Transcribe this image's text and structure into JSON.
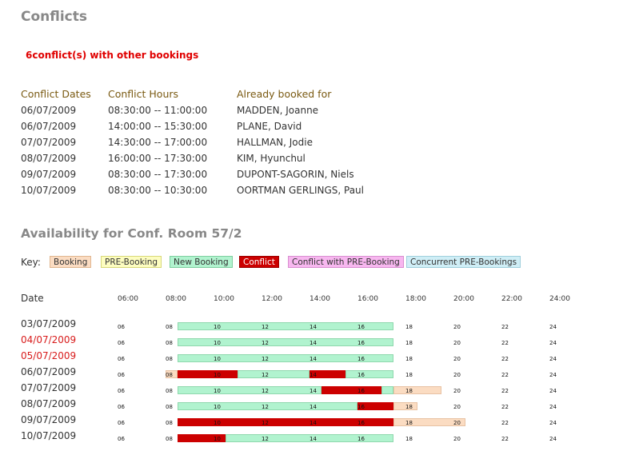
{
  "title": "Conflicts",
  "conflict_message": "6conflict(s) with other bookings",
  "table": {
    "headers": [
      "Conflict Dates",
      "Conflict Hours",
      "Already booked for"
    ],
    "rows": [
      [
        "06/07/2009",
        "08:30:00 -- 11:00:00",
        "MADDEN, Joanne"
      ],
      [
        "06/07/2009",
        "14:00:00 -- 15:30:00",
        "PLANE, David"
      ],
      [
        "07/07/2009",
        "14:30:00 -- 17:00:00",
        "HALLMAN, Jodie"
      ],
      [
        "08/07/2009",
        "16:00:00 -- 17:30:00",
        "KIM, Hyunchul"
      ],
      [
        "09/07/2009",
        "08:30:00 -- 17:30:00",
        "DUPONT-SAGORIN, Niels"
      ],
      [
        "10/07/2009",
        "08:30:00 -- 10:30:00",
        "OORTMAN GERLINGS, Paul"
      ]
    ]
  },
  "availability_title": "Availability for Conf. Room 57/2",
  "key": {
    "label": "Key:",
    "items": [
      {
        "label": "Booking",
        "bg": "#fbdcc2",
        "border": "#e0b690",
        "color": "#333333"
      },
      {
        "label": "PRE-Booking",
        "bg": "#fdfdc0",
        "border": "#d8d87a",
        "color": "#333333"
      },
      {
        "label": "New Booking",
        "bg": "#b1f3cf",
        "border": "#7fcf9f",
        "color": "#333333"
      },
      {
        "label": "Conflict",
        "bg": "#cc0000",
        "border": "#990000",
        "color": "#ffffff"
      },
      {
        "label": "Conflict with PRE-Booking",
        "bg": "#f7b7ef",
        "border": "#d98fd0",
        "color": "#333333"
      },
      {
        "label": "Concurrent PRE-Bookings",
        "bg": "#cfeef6",
        "border": "#9fcfdc",
        "color": "#333333"
      }
    ]
  },
  "grid": {
    "date_header": "Date",
    "hour_headers": [
      "06:00",
      "08:00",
      "10:00",
      "12:00",
      "14:00",
      "16:00",
      "18:00",
      "20:00",
      "22:00",
      "24:00"
    ],
    "tick_labels": [
      "06",
      "08",
      "10",
      "12",
      "14",
      "16",
      "18",
      "20",
      "22",
      "24"
    ],
    "start_hour": 6,
    "end_hour": 24,
    "rows": [
      {
        "date": "03/07/2009",
        "highlight": false,
        "bars": [
          {
            "type": "new",
            "start": 8.5,
            "end": 17.5
          }
        ]
      },
      {
        "date": "04/07/2009",
        "highlight": true,
        "bars": [
          {
            "type": "new",
            "start": 8.5,
            "end": 17.5
          }
        ]
      },
      {
        "date": "05/07/2009",
        "highlight": true,
        "bars": [
          {
            "type": "new",
            "start": 8.5,
            "end": 17.5
          }
        ]
      },
      {
        "date": "06/07/2009",
        "highlight": false,
        "bars": [
          {
            "type": "booking",
            "start": 8.0,
            "end": 8.5
          },
          {
            "type": "conflict",
            "start": 8.5,
            "end": 11.0
          },
          {
            "type": "new",
            "start": 11.0,
            "end": 14.0
          },
          {
            "type": "conflict",
            "start": 14.0,
            "end": 15.5
          },
          {
            "type": "new",
            "start": 15.5,
            "end": 17.5
          }
        ]
      },
      {
        "date": "07/07/2009",
        "highlight": false,
        "bars": [
          {
            "type": "new",
            "start": 8.5,
            "end": 14.5
          },
          {
            "type": "conflict",
            "start": 14.5,
            "end": 17.0
          },
          {
            "type": "new",
            "start": 17.0,
            "end": 17.5
          },
          {
            "type": "booking",
            "start": 17.5,
            "end": 19.5
          }
        ]
      },
      {
        "date": "08/07/2009",
        "highlight": false,
        "bars": [
          {
            "type": "new",
            "start": 8.5,
            "end": 16.0
          },
          {
            "type": "conflict",
            "start": 16.0,
            "end": 17.5
          },
          {
            "type": "booking",
            "start": 17.5,
            "end": 18.5
          }
        ]
      },
      {
        "date": "09/07/2009",
        "highlight": false,
        "bars": [
          {
            "type": "conflict",
            "start": 8.5,
            "end": 17.5
          },
          {
            "type": "booking",
            "start": 17.5,
            "end": 20.5
          }
        ]
      },
      {
        "date": "10/07/2009",
        "highlight": false,
        "bars": [
          {
            "type": "conflict",
            "start": 8.5,
            "end": 10.5
          },
          {
            "type": "new",
            "start": 10.5,
            "end": 17.5
          }
        ]
      }
    ]
  }
}
